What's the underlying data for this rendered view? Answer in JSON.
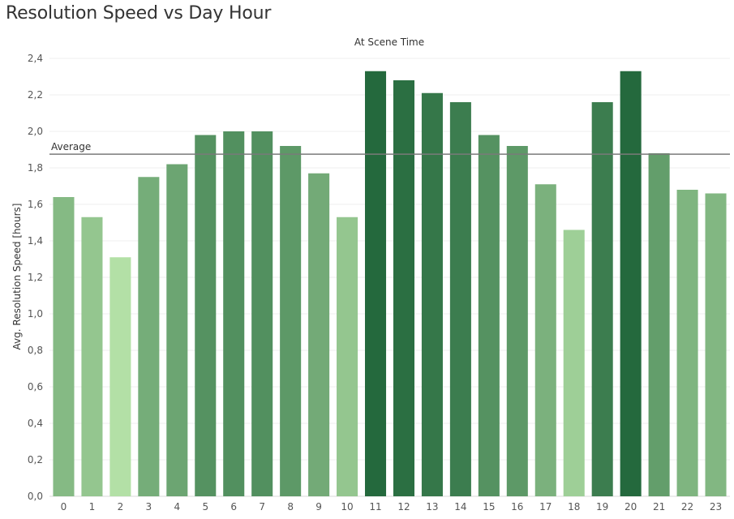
{
  "page": {
    "title": "Resolution Speed vs Day Hour"
  },
  "chart_data": {
    "type": "bar",
    "title": "Resolution Speed vs Day Hour",
    "subtitle": "At Scene Time",
    "xlabel": "",
    "ylabel": "Avg. Resolution Speed [hours]",
    "categories": [
      "0",
      "1",
      "2",
      "3",
      "4",
      "5",
      "6",
      "7",
      "8",
      "9",
      "10",
      "11",
      "12",
      "13",
      "14",
      "15",
      "16",
      "17",
      "18",
      "19",
      "20",
      "21",
      "22",
      "23"
    ],
    "values": [
      1.64,
      1.53,
      1.31,
      1.75,
      1.82,
      1.98,
      2.0,
      2.0,
      1.92,
      1.77,
      1.53,
      2.33,
      2.28,
      2.21,
      2.16,
      1.98,
      1.92,
      1.71,
      1.46,
      2.16,
      2.33,
      1.88,
      1.68,
      1.66
    ],
    "ylim": [
      0,
      2.4
    ],
    "yticks": [
      "0,0",
      "0,2",
      "0,4",
      "0,6",
      "0,8",
      "1,0",
      "1,2",
      "1,4",
      "1,6",
      "1,8",
      "2,0",
      "2,2",
      "2,4"
    ],
    "grid": true,
    "reference_line": {
      "label": "Average",
      "value": 1.875
    },
    "color_scale": {
      "low": "#b3e0a6",
      "high": "#24693d"
    }
  }
}
